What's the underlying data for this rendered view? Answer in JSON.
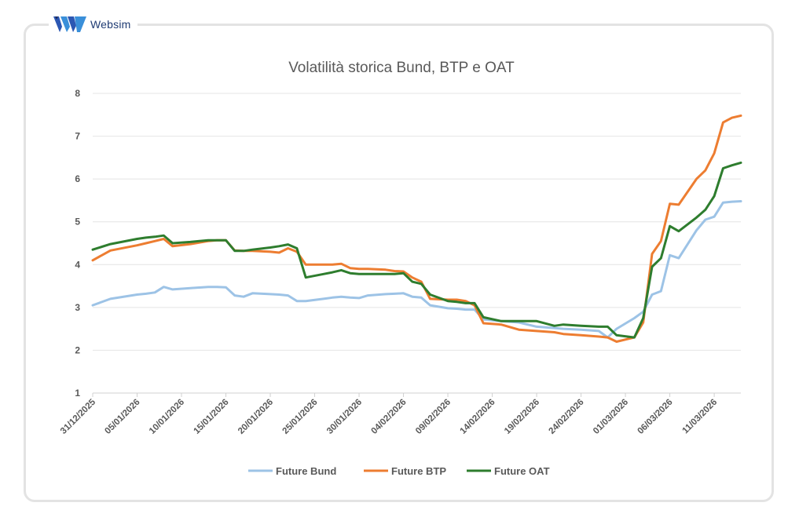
{
  "brand": {
    "name": "Websim",
    "logo_icon": "websim-logo-icon"
  },
  "chart_data": {
    "type": "line",
    "title": "Volatilità storica Bund, BTP e OAT",
    "xlabel": "",
    "ylabel": "",
    "ylim": [
      1,
      8
    ],
    "yticks": [
      1,
      2,
      3,
      4,
      5,
      6,
      7,
      8
    ],
    "grid": true,
    "legend_position": "bottom",
    "xlim": [
      0,
      73
    ],
    "x_tick_labels": [
      "31/12/2025",
      "05/01/2026",
      "10/01/2026",
      "15/01/2026",
      "20/01/2026",
      "25/01/2026",
      "30/01/2026",
      "04/02/2026",
      "09/02/2026",
      "14/02/2026",
      "19/02/2026",
      "24/02/2026",
      "01/03/2026",
      "06/03/2026",
      "11/03/2026"
    ],
    "x_tick_positions": [
      0,
      5,
      10,
      15,
      20,
      25,
      30,
      35,
      40,
      45,
      50,
      55,
      60,
      65,
      70
    ],
    "series": [
      {
        "name": "Future Bund",
        "color": "#9dc3e6",
        "x": [
          0,
          2,
          5,
          6,
          7,
          8,
          9,
          11,
          13,
          14,
          15,
          16,
          17,
          18,
          20,
          21,
          22,
          23,
          24,
          26,
          27,
          28,
          29,
          30,
          31,
          33,
          34,
          35,
          36,
          37,
          38,
          40,
          41,
          42,
          43,
          44,
          46,
          48,
          50,
          52,
          53,
          55,
          57,
          58,
          59,
          61,
          62,
          63,
          64,
          65,
          66,
          68,
          69,
          70,
          71,
          72,
          73
        ],
        "y": [
          3.05,
          3.2,
          3.3,
          3.32,
          3.35,
          3.48,
          3.42,
          3.45,
          3.48,
          3.48,
          3.47,
          3.28,
          3.25,
          3.33,
          3.31,
          3.3,
          3.28,
          3.15,
          3.15,
          3.2,
          3.23,
          3.25,
          3.23,
          3.22,
          3.28,
          3.31,
          3.32,
          3.33,
          3.25,
          3.23,
          3.05,
          2.98,
          2.97,
          2.95,
          2.95,
          2.72,
          2.68,
          2.65,
          2.55,
          2.52,
          2.5,
          2.48,
          2.45,
          2.3,
          2.5,
          2.75,
          2.9,
          3.3,
          3.38,
          4.22,
          4.15,
          4.8,
          5.05,
          5.12,
          5.45,
          5.47,
          5.48
        ]
      },
      {
        "name": "Future BTP",
        "color": "#ed7d31",
        "x": [
          0,
          2,
          5,
          6,
          7,
          8,
          9,
          11,
          13,
          14,
          15,
          16,
          17,
          18,
          20,
          21,
          22,
          23,
          24,
          26,
          27,
          28,
          29,
          30,
          31,
          33,
          34,
          35,
          36,
          37,
          38,
          40,
          41,
          42,
          43,
          44,
          46,
          48,
          50,
          52,
          53,
          55,
          57,
          58,
          59,
          61,
          62,
          63,
          64,
          65,
          66,
          68,
          69,
          70,
          71,
          72,
          73
        ],
        "y": [
          4.1,
          4.33,
          4.45,
          4.5,
          4.55,
          4.6,
          4.43,
          4.48,
          4.55,
          4.57,
          4.57,
          4.33,
          4.32,
          4.32,
          4.3,
          4.28,
          4.38,
          4.3,
          4.0,
          4.0,
          4.0,
          4.02,
          3.92,
          3.9,
          3.9,
          3.88,
          3.85,
          3.84,
          3.7,
          3.6,
          3.2,
          3.18,
          3.18,
          3.15,
          3.05,
          2.63,
          2.6,
          2.48,
          2.45,
          2.42,
          2.38,
          2.35,
          2.32,
          2.3,
          2.2,
          2.3,
          2.65,
          4.25,
          4.55,
          5.42,
          5.4,
          6.0,
          6.2,
          6.6,
          7.32,
          7.43,
          7.48
        ]
      },
      {
        "name": "Future OAT",
        "color": "#2e7d2e",
        "x": [
          0,
          2,
          5,
          6,
          7,
          8,
          9,
          11,
          13,
          14,
          15,
          16,
          17,
          18,
          20,
          21,
          22,
          23,
          24,
          26,
          27,
          28,
          29,
          30,
          31,
          33,
          34,
          35,
          36,
          37,
          38,
          40,
          41,
          42,
          43,
          44,
          46,
          48,
          50,
          52,
          53,
          55,
          57,
          58,
          59,
          61,
          62,
          63,
          64,
          65,
          66,
          68,
          69,
          70,
          71,
          72,
          73
        ],
        "y": [
          4.35,
          4.48,
          4.6,
          4.63,
          4.65,
          4.68,
          4.5,
          4.53,
          4.57,
          4.57,
          4.57,
          4.32,
          4.32,
          4.35,
          4.4,
          4.43,
          4.47,
          4.38,
          3.7,
          3.78,
          3.82,
          3.87,
          3.8,
          3.78,
          3.78,
          3.78,
          3.78,
          3.8,
          3.6,
          3.55,
          3.3,
          3.15,
          3.13,
          3.1,
          3.1,
          2.77,
          2.68,
          2.68,
          2.68,
          2.57,
          2.6,
          2.57,
          2.55,
          2.55,
          2.35,
          2.3,
          2.75,
          3.95,
          4.15,
          4.9,
          4.78,
          5.1,
          5.28,
          5.6,
          6.25,
          6.32,
          6.38
        ]
      }
    ]
  }
}
